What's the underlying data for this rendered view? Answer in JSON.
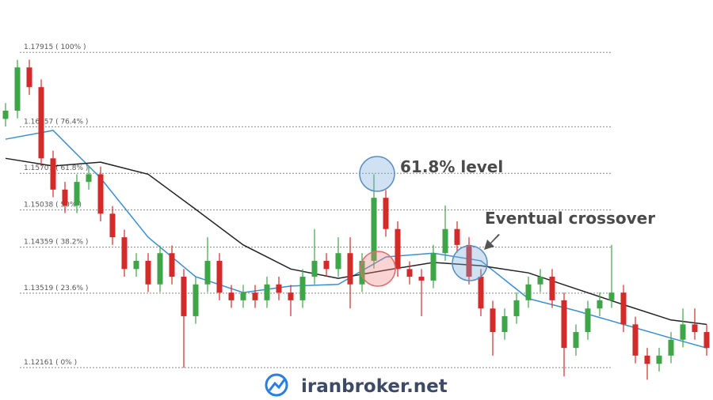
{
  "chart_data": {
    "type": "candlestick",
    "open": [
      1.167,
      1.1685,
      1.1764,
      1.1728,
      1.1598,
      1.1541,
      1.1512,
      1.1555,
      1.1569,
      1.1497,
      1.1454,
      1.1396,
      1.1411,
      1.1368,
      1.1425,
      1.1382,
      1.131,
      1.1368,
      1.1411,
      1.1353,
      1.1339,
      1.1353,
      1.1339,
      1.1368,
      1.1353,
      1.1339,
      1.1382,
      1.1411,
      1.1396,
      1.1425,
      1.1368,
      1.1411,
      1.1526,
      1.1469,
      1.1396,
      1.1382,
      1.1375,
      1.1425,
      1.1469,
      1.144,
      1.1382,
      1.1324,
      1.1281,
      1.131,
      1.1339,
      1.1368,
      1.1382,
      1.1339,
      1.1252,
      1.1281,
      1.1324,
      1.1339,
      1.1353,
      1.1295,
      1.1238,
      1.1223,
      1.1238,
      1.1267,
      1.1295,
      1.1281
    ],
    "high": [
      1.1699,
      1.1778,
      1.1778,
      1.1742,
      1.1612,
      1.1555,
      1.1569,
      1.1583,
      1.1583,
      1.1511,
      1.1468,
      1.1425,
      1.1425,
      1.1439,
      1.1439,
      1.1396,
      1.1382,
      1.1454,
      1.1425,
      1.1367,
      1.1367,
      1.1367,
      1.1382,
      1.1382,
      1.1367,
      1.1396,
      1.1469,
      1.1425,
      1.1454,
      1.1454,
      1.1425,
      1.1569,
      1.154,
      1.1483,
      1.141,
      1.1396,
      1.144,
      1.1512,
      1.1483,
      1.1454,
      1.1396,
      1.1338,
      1.1324,
      1.1353,
      1.1382,
      1.1396,
      1.1396,
      1.1353,
      1.1295,
      1.1338,
      1.1353,
      1.144,
      1.1367,
      1.1309,
      1.1252,
      1.1252,
      1.1281,
      1.1324,
      1.1324,
      1.1295
    ],
    "low": [
      1.1656,
      1.1671,
      1.1714,
      1.1584,
      1.1527,
      1.1498,
      1.1498,
      1.1541,
      1.1483,
      1.144,
      1.1382,
      1.1382,
      1.1354,
      1.1354,
      1.1368,
      1.1216,
      1.1296,
      1.1354,
      1.1339,
      1.1325,
      1.1325,
      1.1325,
      1.1325,
      1.1339,
      1.131,
      1.1325,
      1.1368,
      1.1382,
      1.1382,
      1.1324,
      1.1354,
      1.1397,
      1.1455,
      1.1382,
      1.1368,
      1.131,
      1.1361,
      1.1411,
      1.1426,
      1.1368,
      1.131,
      1.1238,
      1.1267,
      1.1296,
      1.1325,
      1.1354,
      1.1325,
      1.12,
      1.1238,
      1.1267,
      1.131,
      1.1325,
      1.1281,
      1.1224,
      1.1194,
      1.1209,
      1.1224,
      1.1253,
      1.1267,
      1.1238
    ],
    "close": [
      1.1685,
      1.1764,
      1.1728,
      1.1598,
      1.1541,
      1.1512,
      1.1555,
      1.1569,
      1.1497,
      1.1454,
      1.1396,
      1.1411,
      1.1368,
      1.1425,
      1.1382,
      1.131,
      1.1368,
      1.1411,
      1.1353,
      1.1339,
      1.1353,
      1.1339,
      1.1368,
      1.1353,
      1.1339,
      1.1382,
      1.1411,
      1.1396,
      1.1425,
      1.1368,
      1.1411,
      1.1526,
      1.1469,
      1.1396,
      1.1382,
      1.1375,
      1.1425,
      1.1469,
      1.144,
      1.1382,
      1.1324,
      1.1281,
      1.131,
      1.1339,
      1.1368,
      1.1382,
      1.1339,
      1.1252,
      1.1281,
      1.1324,
      1.1339,
      1.1353,
      1.1295,
      1.1238,
      1.1223,
      1.1238,
      1.1267,
      1.1295,
      1.1281,
      1.1252
    ],
    "up_color": "#3ea548",
    "down_color": "#d32a2a",
    "series": [
      {
        "color": "#3a8fd0",
        "x": [
          0,
          4,
          8,
          12,
          16,
          20,
          24,
          28,
          32,
          36,
          40,
          44,
          48,
          52,
          56,
          59
        ],
        "values": [
          1.1633,
          1.1649,
          1.1562,
          1.1454,
          1.1382,
          1.1353,
          1.1365,
          1.1368,
          1.1418,
          1.1425,
          1.1411,
          1.1342,
          1.132,
          1.1295,
          1.127,
          1.1252
        ]
      },
      {
        "color": "#222222",
        "x": [
          0,
          4,
          8,
          12,
          16,
          20,
          24,
          28,
          32,
          36,
          40,
          44,
          48,
          52,
          56,
          59
        ],
        "values": [
          1.1598,
          1.1584,
          1.1591,
          1.1569,
          1.1505,
          1.144,
          1.1396,
          1.1379,
          1.1394,
          1.1408,
          1.1402,
          1.1389,
          1.136,
          1.1331,
          1.1303,
          1.1295
        ]
      }
    ],
    "ylim": [
      1.1157,
      1.1887
    ],
    "yticks": [
      {
        "value": 1.17915,
        "label": "1.17915 ( 100% )"
      },
      {
        "value": 1.16557,
        "label": "1.16557 ( 76.4% )"
      },
      {
        "value": 1.15707,
        "label": "1.15707 ( 61.8% )"
      },
      {
        "value": 1.15038,
        "label": "1.15038 ( 50% )"
      },
      {
        "value": 1.14359,
        "label": "1.14359 ( 38.2% )"
      },
      {
        "value": 1.13519,
        "label": "1.13519 ( 23.6% )"
      },
      {
        "value": 1.12161,
        "label": "1.12161 ( 0% )"
      }
    ],
    "annotations": [
      "61.8% level",
      "Eventual crossover"
    ]
  },
  "watermark": "iranbroker.net"
}
